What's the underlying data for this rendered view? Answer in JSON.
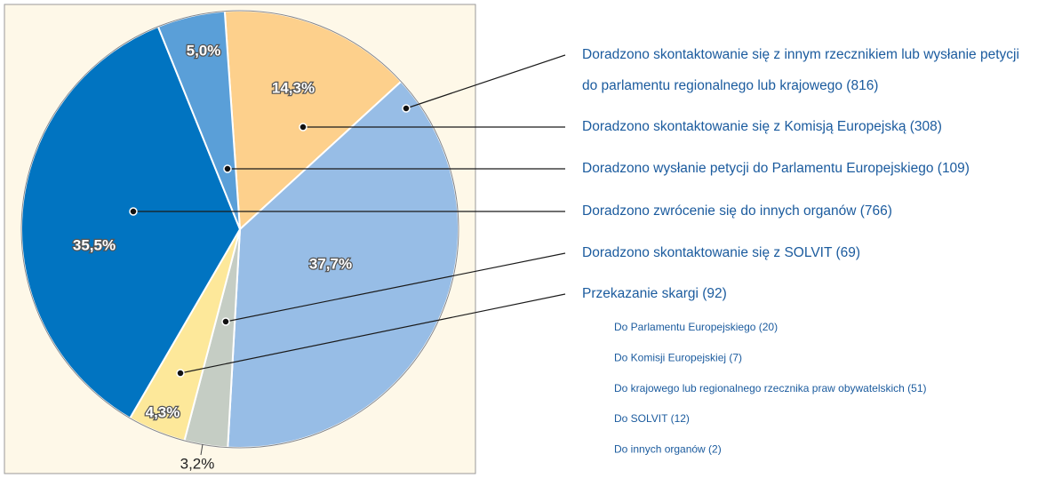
{
  "chart_data": {
    "type": "pie",
    "categories": [
      "Doradzono skontaktowanie się z innym rzecznikiem lub wysłanie petycji do parlamentu regionalnego lub krajowego (816)",
      "Doradzono skontaktowanie się z Komisją Europejską (308)",
      "Doradzono wysłanie petycji do Parlamentu Europejskiego (109)",
      "Doradzono zwrócenie się do innych organów (766)",
      "Doradzono skontaktowanie się z SOLVIT (69)",
      "Przekazanie skargi (92)"
    ],
    "values": [
      37.7,
      14.3,
      5.0,
      35.5,
      3.2,
      4.3
    ],
    "value_labels": [
      "37,7%",
      "14,3%",
      "5,0%",
      "35,5%",
      "3,2%",
      "4,3%"
    ],
    "colors": [
      "#97bde6",
      "#fdd08c",
      "#5a9fd8",
      "#0174c1",
      "#c5cdc4",
      "#fde89a"
    ],
    "sub_items": [
      "Do Parlamentu Europejskiego (20)",
      "Do Komisji Europejskiej (7)",
      "Do krajowego lub regionalnego rzecznika praw obywatelskich (51)",
      "Do SOLVIT (12)",
      "Do innych organów (2)"
    ]
  }
}
